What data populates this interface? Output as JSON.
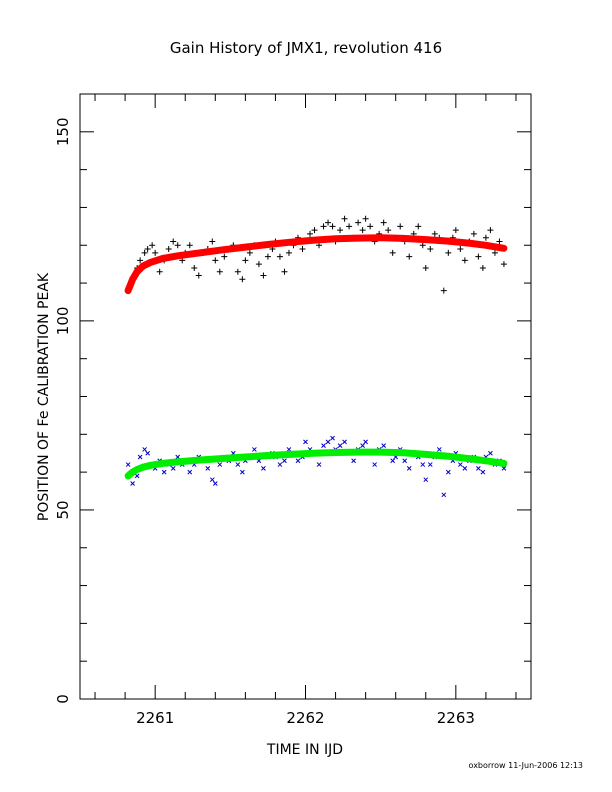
{
  "chart_data": {
    "type": "scatter",
    "title": "Gain History of JMX1, revolution 416",
    "xlabel": "TIME IN IJD",
    "ylabel": "POSITION OF Fe CALIBRATION PEAK",
    "xlim": [
      2260.5,
      2263.5
    ],
    "ylim": [
      0,
      160
    ],
    "x_ticks": [
      2261,
      2262,
      2263
    ],
    "x_tick_labels": [
      "2261",
      "2262",
      "2263"
    ],
    "y_ticks": [
      0,
      50,
      100,
      150
    ],
    "y_tick_labels": [
      "0",
      "50",
      "100",
      "150"
    ],
    "grid": false,
    "legend": "none",
    "footer": "oxborrow 11-Jun-2006 12:13",
    "series": [
      {
        "marker": "plus",
        "color": "#000000",
        "x": [
          2260.82,
          2260.85,
          2260.88,
          2260.9,
          2260.93,
          2260.95,
          2260.98,
          2261.0,
          2261.03,
          2261.06,
          2261.09,
          2261.12,
          2261.15,
          2261.18,
          2261.2,
          2261.23,
          2261.26,
          2261.29,
          2261.32,
          2261.35,
          2261.38,
          2261.4,
          2261.43,
          2261.46,
          2261.49,
          2261.52,
          2261.55,
          2261.58,
          2261.6,
          2261.63,
          2261.66,
          2261.69,
          2261.72,
          2261.75,
          2261.78,
          2261.8,
          2261.83,
          2261.86,
          2261.89,
          2261.92,
          2261.95,
          2261.98,
          2262.0,
          2262.03,
          2262.06,
          2262.09,
          2262.12,
          2262.15,
          2262.18,
          2262.2,
          2262.23,
          2262.26,
          2262.29,
          2262.32,
          2262.35,
          2262.38,
          2262.4,
          2262.43,
          2262.46,
          2262.49,
          2262.52,
          2262.55,
          2262.58,
          2262.6,
          2262.63,
          2262.66,
          2262.69,
          2262.72,
          2262.75,
          2262.78,
          2262.8,
          2262.83,
          2262.86,
          2262.89,
          2262.92,
          2262.95,
          2262.98,
          2263.0,
          2263.03,
          2263.06,
          2263.09,
          2263.12,
          2263.15,
          2263.18,
          2263.2,
          2263.23,
          2263.26,
          2263.29,
          2263.32
        ],
        "y": [
          108,
          111,
          114,
          116,
          118,
          119,
          120,
          118,
          113,
          116,
          119,
          121,
          120,
          116,
          118,
          120,
          114,
          112,
          118,
          119,
          121,
          116,
          113,
          117,
          119,
          120,
          113,
          111,
          116,
          118,
          120,
          115,
          112,
          117,
          119,
          121,
          117,
          113,
          118,
          120,
          122,
          119,
          121,
          123,
          124,
          120,
          125,
          126,
          125,
          121,
          124,
          127,
          125,
          122,
          126,
          124,
          127,
          125,
          121,
          123,
          126,
          124,
          118,
          122,
          125,
          121,
          117,
          123,
          125,
          120,
          114,
          119,
          123,
          122,
          108,
          118,
          122,
          124,
          119,
          116,
          121,
          123,
          117,
          114,
          122,
          124,
          118,
          121,
          115
        ]
      },
      {
        "marker": "x",
        "color": "#0000cc",
        "x": [
          2260.82,
          2260.85,
          2260.88,
          2260.9,
          2260.93,
          2260.95,
          2260.98,
          2261.0,
          2261.03,
          2261.06,
          2261.09,
          2261.12,
          2261.15,
          2261.18,
          2261.2,
          2261.23,
          2261.26,
          2261.29,
          2261.32,
          2261.35,
          2261.38,
          2261.4,
          2261.43,
          2261.46,
          2261.49,
          2261.52,
          2261.55,
          2261.58,
          2261.6,
          2261.63,
          2261.66,
          2261.69,
          2261.72,
          2261.75,
          2261.78,
          2261.8,
          2261.83,
          2261.86,
          2261.89,
          2261.92,
          2261.95,
          2261.98,
          2262.0,
          2262.03,
          2262.06,
          2262.09,
          2262.12,
          2262.15,
          2262.18,
          2262.2,
          2262.23,
          2262.26,
          2262.29,
          2262.32,
          2262.35,
          2262.38,
          2262.4,
          2262.43,
          2262.46,
          2262.49,
          2262.52,
          2262.55,
          2262.58,
          2262.6,
          2262.63,
          2262.66,
          2262.69,
          2262.72,
          2262.75,
          2262.78,
          2262.8,
          2262.83,
          2262.86,
          2262.89,
          2262.92,
          2262.95,
          2262.98,
          2263.0,
          2263.03,
          2263.06,
          2263.09,
          2263.12,
          2263.15,
          2263.18,
          2263.2,
          2263.23,
          2263.26,
          2263.29,
          2263.32
        ],
        "y": [
          62,
          57,
          59,
          64,
          66,
          65,
          62,
          61,
          63,
          60,
          62,
          61,
          64,
          62,
          63,
          60,
          62,
          64,
          63,
          61,
          58,
          57,
          62,
          64,
          63,
          65,
          62,
          60,
          63,
          64,
          66,
          63,
          61,
          64,
          65,
          64,
          62,
          63,
          66,
          65,
          63,
          64,
          68,
          66,
          65,
          62,
          67,
          68,
          69,
          66,
          67,
          68,
          65,
          63,
          66,
          67,
          68,
          65,
          62,
          66,
          67,
          65,
          63,
          64,
          66,
          63,
          61,
          65,
          64,
          62,
          58,
          62,
          64,
          66,
          54,
          60,
          63,
          65,
          62,
          61,
          63,
          64,
          61,
          60,
          64,
          65,
          62,
          63,
          61
        ]
      },
      {
        "type": "line",
        "color": "#ff0000",
        "x": [
          2260.82,
          2260.85,
          2260.88,
          2260.92,
          2260.97,
          2261.05,
          2261.15,
          2261.3,
          2261.45,
          2261.6,
          2261.75,
          2261.9,
          2262.05,
          2262.2,
          2262.35,
          2262.5,
          2262.65,
          2262.8,
          2262.95,
          2263.1,
          2263.2,
          2263.32
        ],
        "y": [
          108,
          111,
          113,
          114.5,
          115.5,
          116.5,
          117.2,
          118,
          118.8,
          119.5,
          120.2,
          120.8,
          121.3,
          121.7,
          121.9,
          122,
          121.8,
          121.5,
          121.1,
          120.5,
          120,
          119.2
        ]
      },
      {
        "type": "line",
        "color": "#00ee00",
        "x": [
          2260.82,
          2260.85,
          2260.88,
          2260.92,
          2260.97,
          2261.05,
          2261.15,
          2261.3,
          2261.45,
          2261.6,
          2261.75,
          2261.9,
          2262.05,
          2262.2,
          2262.35,
          2262.5,
          2262.65,
          2262.8,
          2262.95,
          2263.1,
          2263.2,
          2263.32
        ],
        "y": [
          59,
          60,
          60.7,
          61.3,
          61.8,
          62.3,
          62.7,
          63.2,
          63.6,
          64,
          64.4,
          64.7,
          65,
          65.2,
          65.3,
          65.3,
          65.1,
          64.7,
          64.2,
          63.5,
          63,
          62.3
        ]
      }
    ]
  }
}
